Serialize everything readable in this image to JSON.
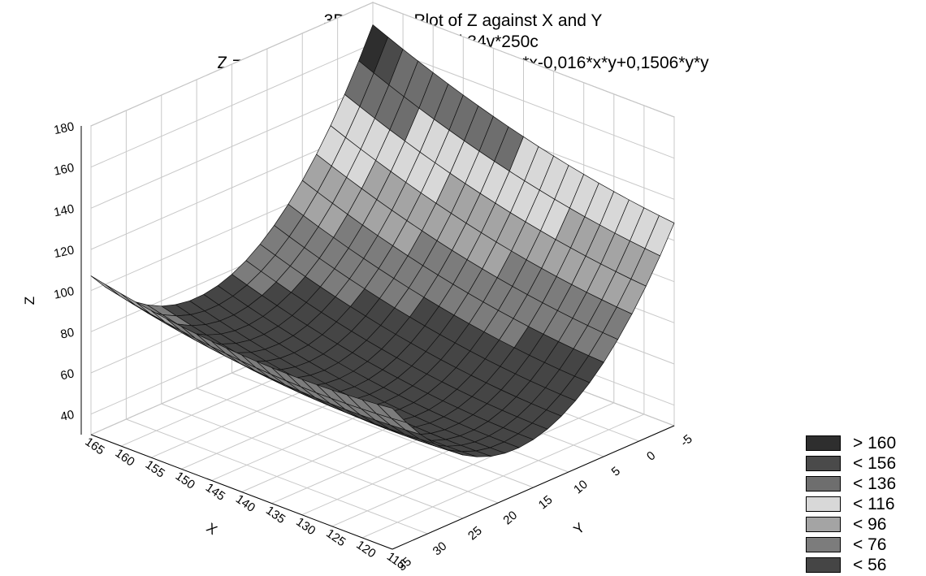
{
  "chart_data": {
    "type": "surface3d",
    "title": "3D Surface Plot of Z against X and Y",
    "subtitle": "Babko kol 34v*250c",
    "equation": "Z = 203,8024-2,0667*x-3,4282*y+0,01*x*x-0,016*x*y+0,1506*y*y",
    "formula": {
      "c0": 203.8024,
      "cx": -2.0667,
      "cy": -3.4282,
      "cxx": 0.01,
      "cxy": -0.016,
      "cyy": 0.1506
    },
    "xlabel": "X",
    "ylabel": "Y",
    "zlabel": "Z",
    "x_range": [
      115,
      165
    ],
    "y_range": [
      -5,
      35
    ],
    "z_range": [
      30,
      180
    ],
    "x_ticks": [
      115,
      120,
      125,
      130,
      135,
      140,
      145,
      150,
      155,
      160,
      165
    ],
    "y_ticks": [
      -5,
      0,
      5,
      10,
      15,
      20,
      25,
      30,
      35
    ],
    "z_ticks": [
      40,
      60,
      80,
      100,
      120,
      140,
      160,
      180
    ],
    "grid": true,
    "legend_position": "bottom-right",
    "legend": [
      {
        "label": "> 160",
        "color": "#2e2e2e"
      },
      {
        "label": "< 156",
        "color": "#4a4a4a"
      },
      {
        "label": "< 136",
        "color": "#6e6e6e"
      },
      {
        "label": "< 116",
        "color": "#d8d8d8"
      },
      {
        "label": "< 96",
        "color": "#a4a4a4"
      },
      {
        "label": "< 76",
        "color": "#7c7c7c"
      },
      {
        "label": "< 56",
        "color": "#454545"
      }
    ]
  }
}
